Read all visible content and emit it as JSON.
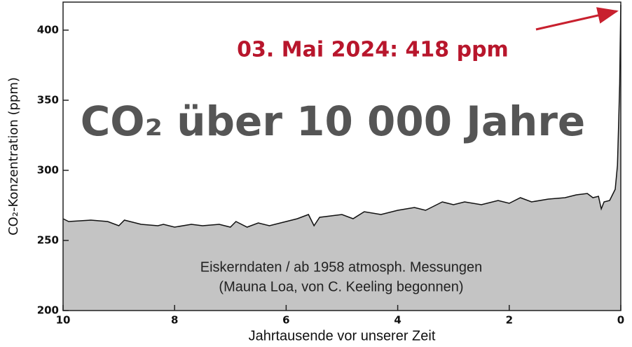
{
  "chart_data": {
    "type": "area",
    "title": "CO₂ über 10 000 Jahre",
    "annotation": "03. Mai 2024: 418 ppm",
    "note_lines": [
      "Eiskerndaten / ab 1958 atmosph. Messungen",
      "(Mauna Loa, von C. Keeling begonnen)"
    ],
    "x_label": "Jahrtausende vor unserer Zeit",
    "y_label": "CO₂-Konzentration (ppm)",
    "x": [
      10,
      9.9,
      9.5,
      9.2,
      9.0,
      8.9,
      8.6,
      8.3,
      8.2,
      8.0,
      7.7,
      7.5,
      7.2,
      7.0,
      6.9,
      6.7,
      6.5,
      6.3,
      6.0,
      5.8,
      5.6,
      5.5,
      5.4,
      5.0,
      4.8,
      4.6,
      4.3,
      4.0,
      3.7,
      3.5,
      3.2,
      3.0,
      2.8,
      2.5,
      2.2,
      2.0,
      1.8,
      1.6,
      1.3,
      1.0,
      0.8,
      0.6,
      0.5,
      0.4,
      0.35,
      0.3,
      0.2,
      0.15,
      0.1,
      0.06,
      0.04,
      0.02,
      0.01,
      0
    ],
    "series": [
      {
        "name": "CO₂",
        "color": "#111111",
        "fill": "#c4c4c4",
        "values": [
          265.5,
          263.5,
          264.5,
          263.5,
          260.5,
          264.5,
          261.5,
          260.5,
          261.5,
          259.5,
          261.5,
          260.5,
          261.5,
          259.5,
          263.5,
          259.5,
          262.5,
          260.5,
          263.5,
          265.5,
          268.5,
          260.5,
          266.5,
          268.5,
          265.5,
          270.5,
          268.5,
          271.5,
          273.5,
          271.5,
          277.5,
          275.5,
          277.5,
          275.5,
          278.5,
          276.5,
          280.5,
          277.5,
          279.5,
          280.5,
          282.5,
          283.5,
          280.5,
          281.5,
          272.5,
          277.5,
          278.5,
          282.5,
          286.5,
          303.5,
          331.5,
          361.5,
          391.5,
          418
        ]
      }
    ],
    "xlim": [
      10,
      0
    ],
    "xticks": [
      10,
      8,
      6,
      4,
      2,
      0
    ],
    "ylim": [
      200,
      420
    ],
    "yticks": [
      200,
      250,
      300,
      350,
      400
    ]
  }
}
